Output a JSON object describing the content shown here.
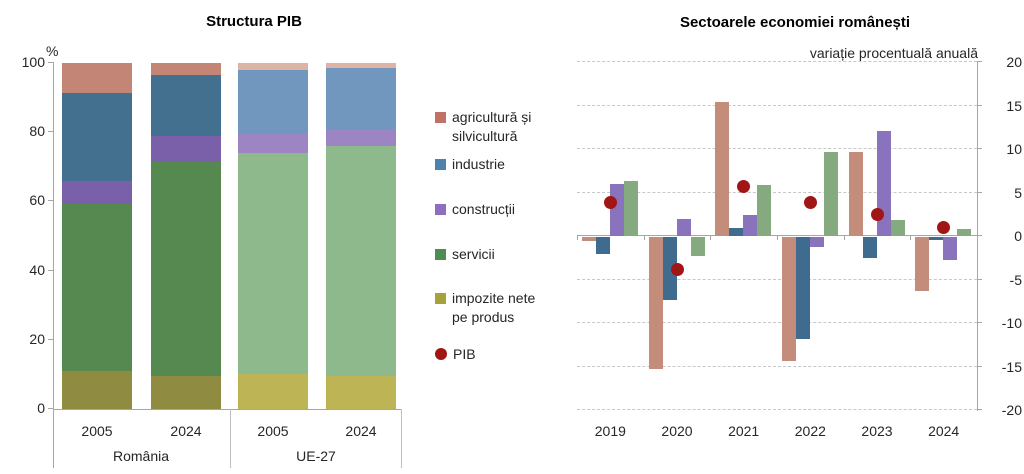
{
  "legend": {
    "items": [
      {
        "key": "agricultura",
        "label": "agricultură și silvicultură",
        "label_lines": [
          "agricultură și",
          "silvicultură"
        ],
        "marker": "square",
        "color": "#bf7265"
      },
      {
        "key": "industrie",
        "label": "industrie",
        "label_lines": [
          "industrie"
        ],
        "marker": "square",
        "color": "#4c82ab"
      },
      {
        "key": "constructii",
        "label": "construcții",
        "label_lines": [
          "construcții"
        ],
        "marker": "square",
        "color": "#8e6ec0"
      },
      {
        "key": "servicii",
        "label": "servicii",
        "label_lines": [
          "servicii"
        ],
        "marker": "square",
        "color": "#4e8c51"
      },
      {
        "key": "impozite",
        "label": "impozite nete pe produs",
        "label_lines": [
          "impozite nete",
          "pe produs"
        ],
        "marker": "square",
        "color": "#a5a23c"
      },
      {
        "key": "pib",
        "label": "PIB",
        "label_lines": [
          "PIB"
        ],
        "marker": "circle",
        "color": "#a21515"
      }
    ]
  },
  "chart_data": [
    {
      "type": "bar",
      "variant": "stacked-100-percent",
      "title": "Structura PIB",
      "unit_label": "%",
      "xlabel": "",
      "ylabel": "%",
      "ylim": [
        0,
        100
      ],
      "y_ticks": [
        100,
        80,
        60,
        40,
        20,
        0
      ],
      "grid": false,
      "stack_order_bottom_to_top": [
        "impozite",
        "servicii",
        "constructii",
        "industrie",
        "agricultura"
      ],
      "groups": [
        {
          "label": "România",
          "palette": "dark"
        },
        {
          "label": "UE-27",
          "palette": "light"
        }
      ],
      "bars": [
        {
          "group": "România",
          "year": "2005",
          "values": {
            "impozite": 11.0,
            "servicii": 48.3,
            "constructii": 6.7,
            "industrie": 25.2,
            "agricultura": 8.8
          }
        },
        {
          "group": "România",
          "year": "2024",
          "values": {
            "impozite": 9.4,
            "servicii": 62.1,
            "constructii": 7.5,
            "industrie": 17.5,
            "agricultura": 3.5
          }
        },
        {
          "group": "UE-27",
          "year": "2005",
          "values": {
            "impozite": 10.0,
            "servicii": 64.1,
            "constructii": 5.5,
            "industrie": 18.4,
            "agricultura": 2.0
          }
        },
        {
          "group": "UE-27",
          "year": "2024",
          "values": {
            "impozite": 9.6,
            "servicii": 66.3,
            "constructii": 5.1,
            "industrie": 17.5,
            "agricultura": 1.5
          }
        }
      ],
      "palettes": {
        "dark": {
          "agricultura": "#c28576",
          "industrie": "#44708f",
          "constructii": "#7a60a8",
          "servicii": "#55894f",
          "impozite": "#8f8c41"
        },
        "light": {
          "agricultura": "#ddb3a4",
          "industrie": "#7297bf",
          "constructii": "#9c85c2",
          "servicii": "#8eb98c",
          "impozite": "#bdb456"
        }
      }
    },
    {
      "type": "bar",
      "variant": "grouped-with-point-overlay",
      "title": "Sectoarele economiei românești",
      "subtitle": "variație procentuală anuală",
      "xlabel": "",
      "ylabel": "variație procentuală anuală",
      "ylim": [
        -20,
        20
      ],
      "y_ticks": [
        20,
        15,
        10,
        5,
        0,
        -5,
        -10,
        -15,
        -20
      ],
      "grid": "horizontal dashed every 5, y-axis on right",
      "legend_position": "shared legend left of chart",
      "categories": [
        "2019",
        "2020",
        "2021",
        "2022",
        "2023",
        "2024"
      ],
      "series": [
        {
          "name": "agricultură și silvicultură",
          "key": "agricultura",
          "color": "#c48c7b",
          "values": [
            -0.5,
            -15.2,
            15.4,
            -14.2,
            9.7,
            -6.2
          ]
        },
        {
          "name": "industrie",
          "key": "industrie",
          "color": "#3f6b8e",
          "values": [
            -2.0,
            -7.2,
            0.9,
            -11.7,
            -2.4,
            -0.3
          ]
        },
        {
          "name": "construcții",
          "key": "constructii",
          "color": "#8873bc",
          "values": [
            6.0,
            1.9,
            2.4,
            -1.1,
            12.1,
            -2.7
          ]
        },
        {
          "name": "servicii",
          "key": "servicii",
          "color": "#85aa7f",
          "values": [
            6.3,
            -2.2,
            5.9,
            9.6,
            1.8,
            0.8
          ]
        }
      ],
      "points_series": {
        "name": "PIB",
        "key": "pib",
        "marker": "circle",
        "color": "#a21515",
        "values": [
          3.9,
          -3.8,
          5.7,
          3.8,
          2.5,
          1.0
        ]
      }
    }
  ]
}
